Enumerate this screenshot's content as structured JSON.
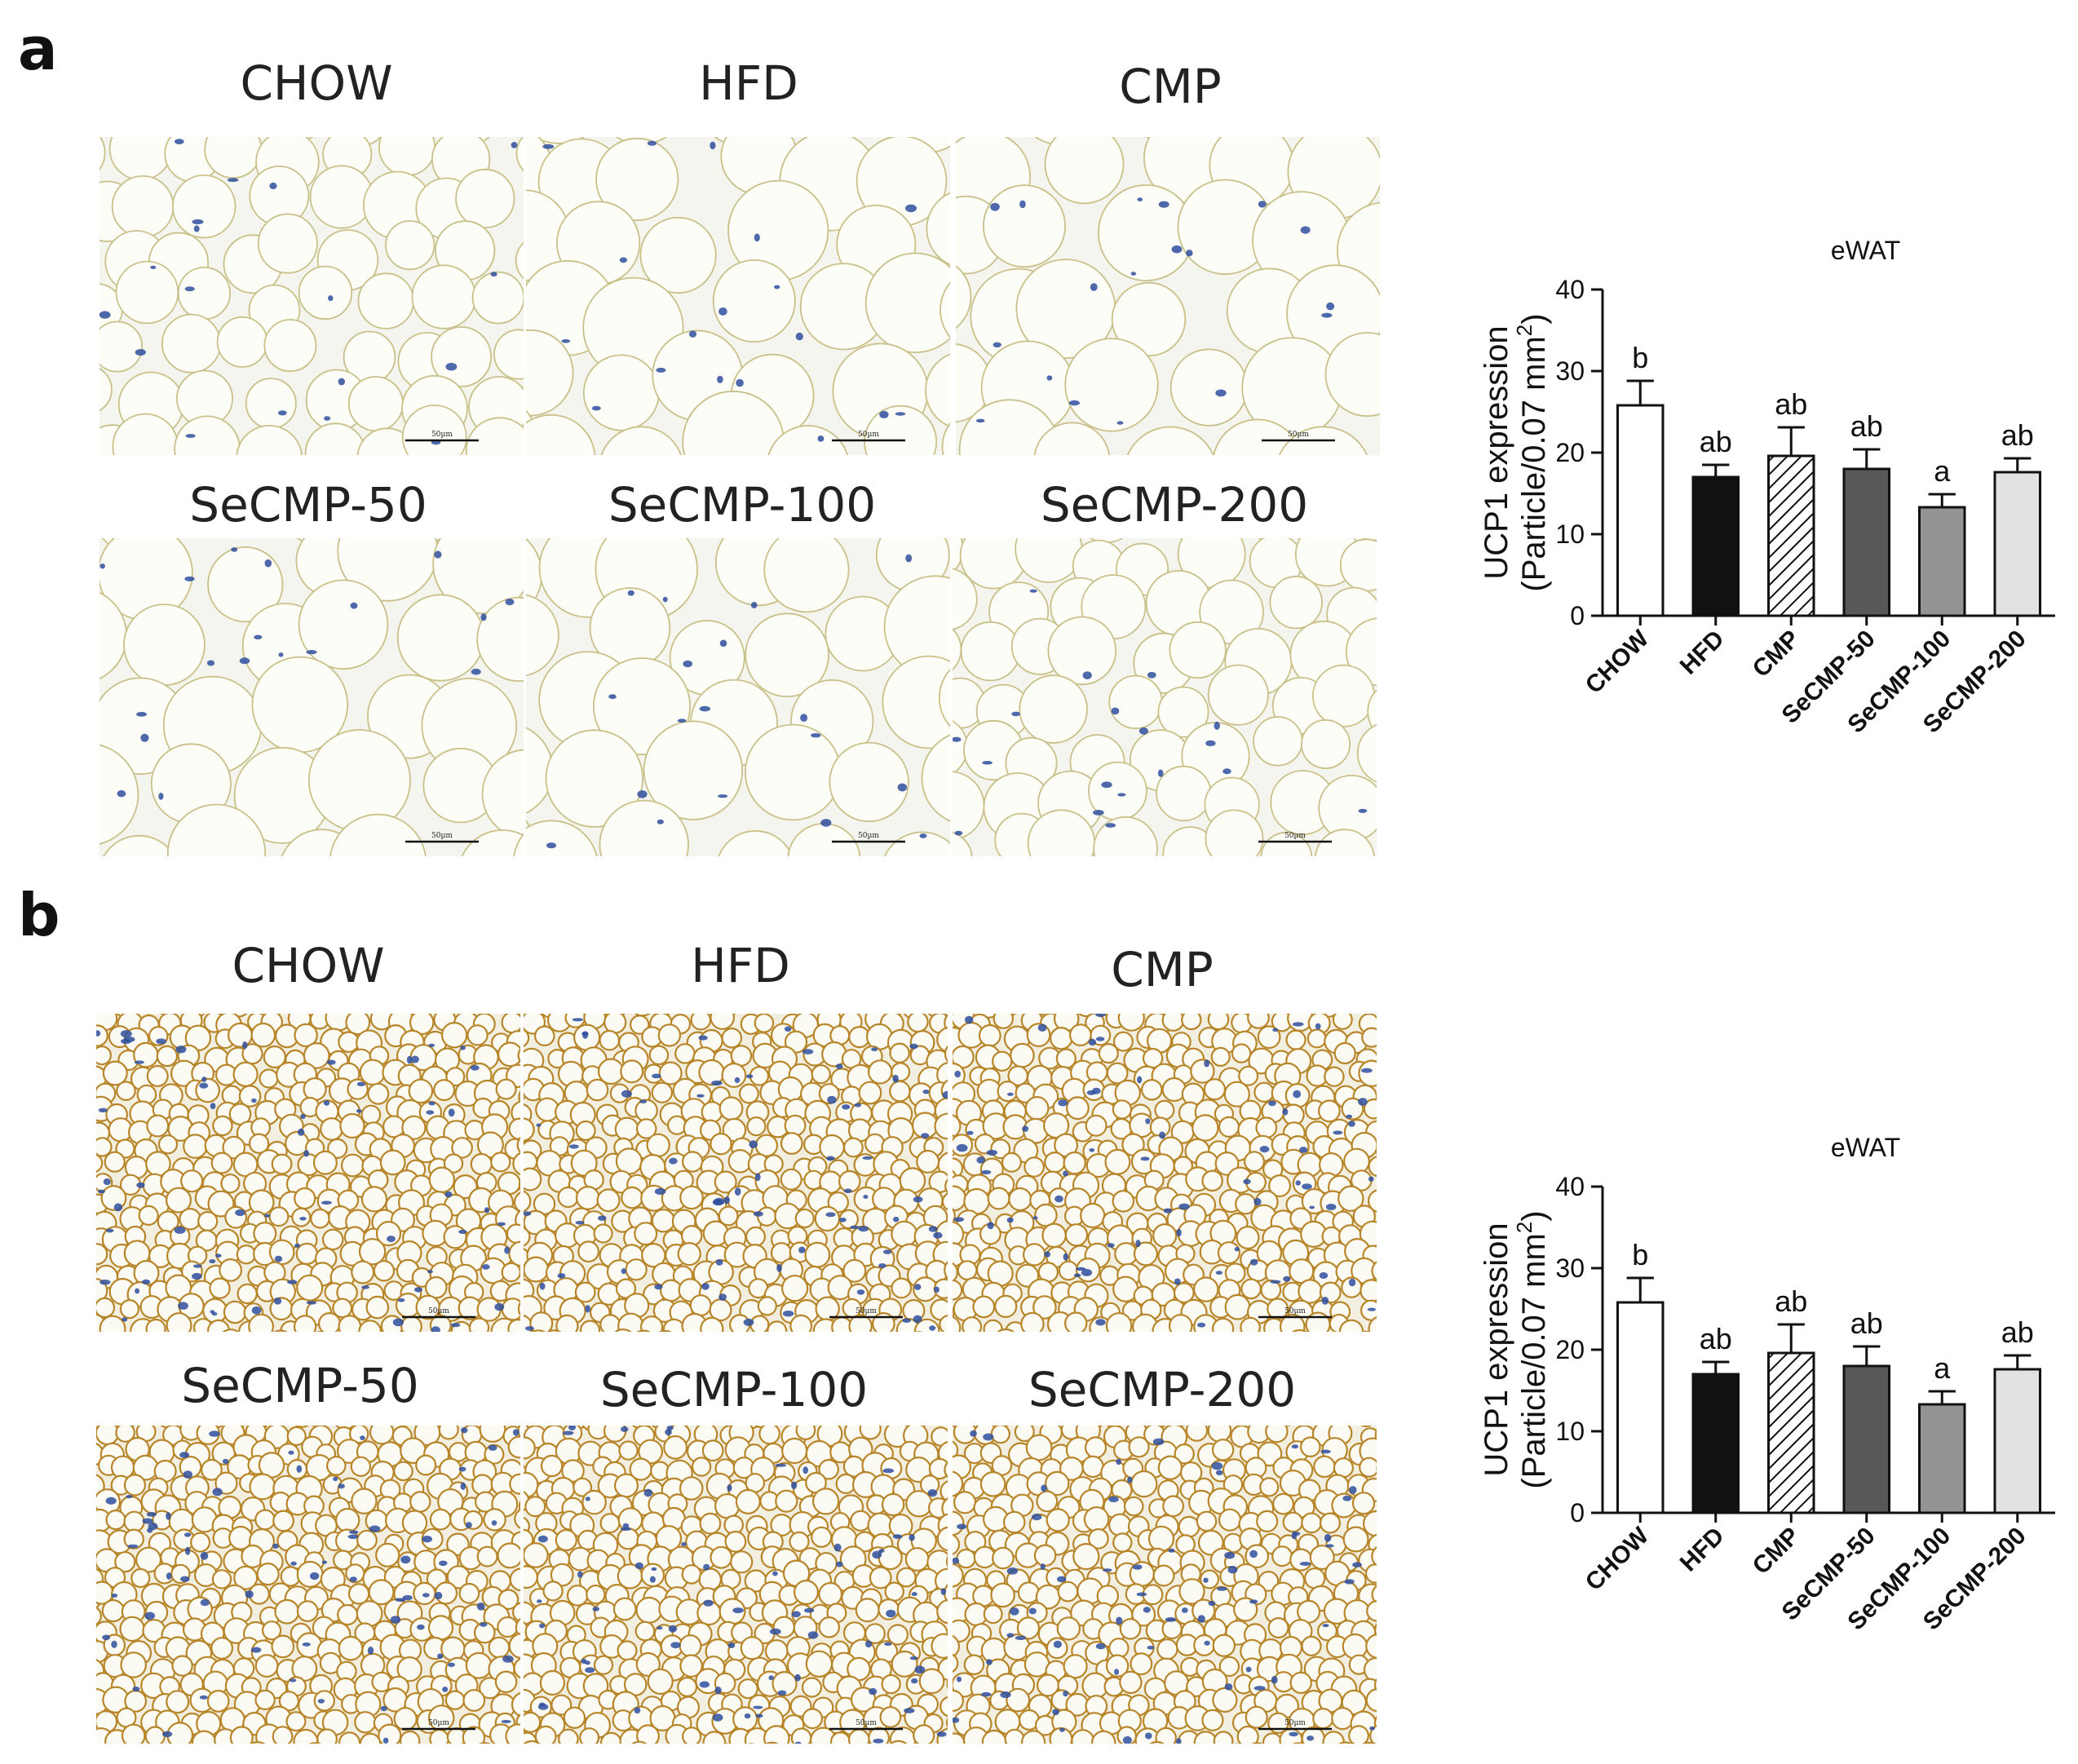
{
  "panels": [
    {
      "letter": "a",
      "images": [
        {
          "label": "CHOW",
          "scale_text": "50µm",
          "stain": "white",
          "cell": "medium"
        },
        {
          "label": "HFD",
          "scale_text": "50µm",
          "stain": "white",
          "cell": "large"
        },
        {
          "label": "CMP",
          "scale_text": "50µm",
          "stain": "white",
          "cell": "large"
        },
        {
          "label": "SeCMP-50",
          "scale_text": "50µm",
          "stain": "white",
          "cell": "large"
        },
        {
          "label": "SeCMP-100",
          "scale_text": "50µm",
          "stain": "white",
          "cell": "large"
        },
        {
          "label": "SeCMP-200",
          "scale_text": "50µm",
          "stain": "white",
          "cell": "medium"
        }
      ]
    },
    {
      "letter": "b",
      "images": [
        {
          "label": "CHOW",
          "scale_text": "50µm",
          "stain": "brown",
          "cell": "small"
        },
        {
          "label": "HFD",
          "scale_text": "50µm",
          "stain": "brown",
          "cell": "small"
        },
        {
          "label": "CMP",
          "scale_text": "50µm",
          "stain": "brown",
          "cell": "small"
        },
        {
          "label": "SeCMP-50",
          "scale_text": "50µm",
          "stain": "brown",
          "cell": "small"
        },
        {
          "label": "SeCMP-100",
          "scale_text": "50µm",
          "stain": "brown",
          "cell": "small"
        },
        {
          "label": "SeCMP-200",
          "scale_text": "50µm",
          "stain": "brown",
          "cell": "small"
        }
      ]
    }
  ],
  "colors": {
    "nucleus": "#2f4f9e",
    "membrane_white": "#c9c08a",
    "membrane_brown": "#b8862a",
    "tissue_bg": "#f4f5ee"
  },
  "chart_data": [
    {
      "type": "bar",
      "title": "eWAT",
      "ylabel_line1": "UCP1 expression",
      "ylabel_line2_prefix": "(Particle/0.07 mm",
      "ylabel_sup": "2",
      "ylabel_line2_suffix": ")",
      "ylim": [
        0,
        40
      ],
      "yticks": [
        0,
        10,
        20,
        30,
        40
      ],
      "categories": [
        "CHOW",
        "HFD",
        "CMP",
        "SeCMP-50",
        "SeCMP-100",
        "SeCMP-200"
      ],
      "values": [
        25.8,
        17.0,
        19.6,
        18.0,
        13.3,
        17.6
      ],
      "errors": [
        3.0,
        1.5,
        3.5,
        2.4,
        1.6,
        1.7
      ],
      "letters": [
        "b",
        "ab",
        "ab",
        "ab",
        "a",
        "ab"
      ],
      "fills": [
        "#ffffff",
        "#111111",
        "hatch",
        "#585858",
        "#939393",
        "#e2e2e2"
      ]
    },
    {
      "type": "bar",
      "title": "eWAT",
      "ylabel_line1": "UCP1 expression",
      "ylabel_line2_prefix": "(Particle/0.07 mm",
      "ylabel_sup": "2",
      "ylabel_line2_suffix": ")",
      "ylim": [
        0,
        40
      ],
      "yticks": [
        0,
        10,
        20,
        30,
        40
      ],
      "categories": [
        "CHOW",
        "HFD",
        "CMP",
        "SeCMP-50",
        "SeCMP-100",
        "SeCMP-200"
      ],
      "values": [
        25.8,
        17.0,
        19.6,
        18.0,
        13.3,
        17.6
      ],
      "errors": [
        3.0,
        1.5,
        3.5,
        2.4,
        1.6,
        1.7
      ],
      "letters": [
        "b",
        "ab",
        "ab",
        "ab",
        "a",
        "ab"
      ],
      "fills": [
        "#ffffff",
        "#111111",
        "hatch",
        "#585858",
        "#939393",
        "#e2e2e2"
      ]
    }
  ]
}
